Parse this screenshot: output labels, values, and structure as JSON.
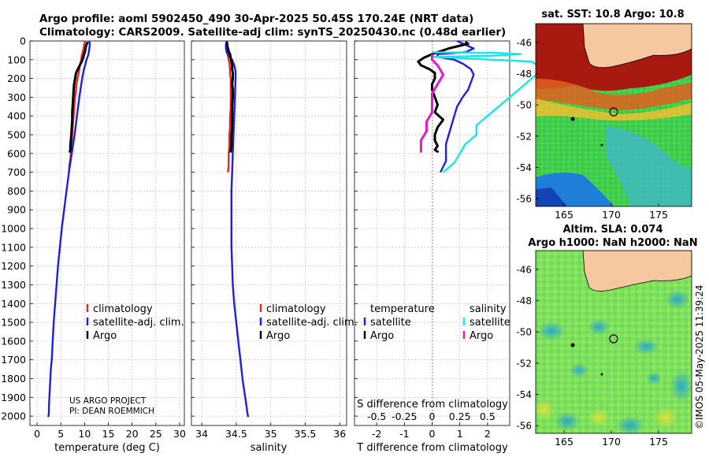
{
  "title": {
    "line1": "Argo profile: aoml 5902450_490 30-Apr-2025 50.45S 170.24E (NRT data)",
    "line2": "Climatology: CARS2009. Satellite-adj clim: synTS_20250430.nc (0.48d earlier)"
  },
  "credit": {
    "line1": "US ARGO PROJECT",
    "line2": "PI: DEAN ROEMMICH"
  },
  "watermark": "©IMOS 05-May-2025 11:39:24",
  "colors": {
    "climatology": "#e8281e",
    "satellite": "#1e1ee6",
    "argo": "#000000",
    "sat_diff_s": "#19e6e6",
    "argo_diff_s": "#e619d2"
  },
  "chart_data": [
    {
      "type": "line",
      "name": "temperature",
      "xlabel": "temperature (deg C)",
      "ylabel": "",
      "xlim": [
        -1.5,
        31
      ],
      "ylim": [
        2050,
        0
      ],
      "xticks": [
        "0",
        "5",
        "10",
        "15",
        "20",
        "25",
        "30"
      ],
      "yticks": [
        "0",
        "100",
        "200",
        "300",
        "400",
        "500",
        "600",
        "700",
        "800",
        "900",
        "1000",
        "1100",
        "1200",
        "1300",
        "1400",
        "1500",
        "1600",
        "1700",
        "1800",
        "1900",
        "2000"
      ],
      "legend": {
        "placement": "lower-right",
        "entries": [
          "climatology",
          "satellite-adj. clim.",
          "Argo"
        ]
      },
      "series": [
        {
          "name": "climatology",
          "color": "#e8281e",
          "x": [
            10.1,
            9.9,
            9.8,
            9.6,
            9.4,
            9.3,
            9.1,
            8.9,
            8.7,
            8.5,
            8.3,
            8.2,
            8.0,
            7.9,
            7.8,
            7.7,
            7.6,
            7.5,
            7.4,
            7.3,
            7.2,
            7.1,
            7.0,
            6.8,
            6.7
          ],
          "y": [
            0,
            20,
            40,
            60,
            80,
            100,
            120,
            150,
            180,
            200,
            230,
            260,
            300,
            330,
            360,
            400,
            430,
            460,
            500,
            530,
            560,
            600,
            630,
            660,
            700
          ]
        },
        {
          "name": "satellite-adj. clim.",
          "color": "#1e1ee6",
          "x": [
            11.0,
            11.1,
            11.0,
            10.9,
            10.7,
            10.4,
            10.1,
            9.8,
            9.5,
            9.2,
            8.9,
            8.4,
            7.9,
            7.3,
            6.7,
            6.2,
            5.7,
            5.2,
            4.8,
            4.4,
            4.1,
            3.8,
            3.5,
            3.3,
            3.1,
            2.9,
            2.8,
            2.7,
            2.6,
            2.5,
            2.5,
            2.4,
            2.4
          ],
          "y": [
            0,
            20,
            40,
            60,
            80,
            100,
            130,
            160,
            200,
            250,
            300,
            400,
            500,
            600,
            700,
            800,
            900,
            1000,
            1100,
            1200,
            1300,
            1400,
            1500,
            1600,
            1700,
            1750,
            1800,
            1850,
            1900,
            1950,
            1980,
            2000,
            2005
          ]
        },
        {
          "name": "Argo",
          "color": "#000000",
          "x": [
            10.6,
            10.5,
            10.3,
            10.2,
            10.1,
            9.9,
            9.7,
            9.4,
            9.0,
            8.6,
            8.2,
            8.0,
            7.8,
            7.7,
            7.6,
            7.5,
            7.4,
            7.4,
            7.3,
            7.2,
            7.1,
            7.0,
            7.0,
            6.9,
            6.9
          ],
          "y": [
            5,
            15,
            25,
            40,
            55,
            70,
            90,
            110,
            130,
            150,
            170,
            200,
            230,
            260,
            300,
            340,
            380,
            420,
            460,
            500,
            530,
            560,
            580,
            590,
            595
          ]
        }
      ]
    },
    {
      "type": "line",
      "name": "salinity",
      "xlabel": "salinity",
      "xlim": [
        33.85,
        36.1
      ],
      "ylim": [
        2050,
        0
      ],
      "xticks": [
        "34",
        "34.5",
        "35",
        "35.5",
        "36"
      ],
      "legend": {
        "placement": "lower-right",
        "entries": [
          "climatology",
          "satellite-adj. clim.",
          "Argo"
        ]
      },
      "series": [
        {
          "name": "climatology",
          "color": "#e8281e",
          "x": [
            34.36,
            34.36,
            34.37,
            34.37,
            34.38,
            34.39,
            34.4,
            34.41,
            34.41,
            34.42,
            34.42,
            34.42,
            34.42,
            34.42,
            34.42,
            34.41,
            34.41,
            34.41,
            34.4,
            34.4,
            34.4,
            34.39,
            34.39,
            34.39,
            34.38
          ],
          "y": [
            0,
            20,
            40,
            60,
            80,
            100,
            120,
            150,
            180,
            200,
            230,
            260,
            300,
            330,
            360,
            400,
            430,
            460,
            500,
            530,
            560,
            600,
            630,
            660,
            700
          ]
        },
        {
          "name": "satellite-adj. clim.",
          "color": "#1e1ee6",
          "x": [
            34.36,
            34.35,
            34.35,
            34.36,
            34.39,
            34.44,
            34.47,
            34.49,
            34.49,
            34.48,
            34.47,
            34.46,
            34.45,
            34.44,
            34.43,
            34.43,
            34.43,
            34.43,
            34.44,
            34.45,
            34.47,
            34.5,
            34.53,
            34.56,
            34.59,
            34.61,
            34.63,
            34.65,
            34.66,
            34.67,
            34.67
          ],
          "y": [
            0,
            20,
            40,
            60,
            80,
            100,
            130,
            160,
            200,
            300,
            400,
            500,
            600,
            700,
            800,
            900,
            1000,
            1100,
            1200,
            1300,
            1400,
            1500,
            1600,
            1700,
            1800,
            1850,
            1900,
            1950,
            1980,
            2000,
            2005
          ]
        },
        {
          "name": "Argo",
          "color": "#000000",
          "x": [
            34.36,
            34.37,
            34.37,
            34.38,
            34.39,
            34.41,
            34.42,
            34.43,
            34.44,
            34.44,
            34.45,
            34.45,
            34.44,
            34.45,
            34.45,
            34.44,
            34.44,
            34.44,
            34.44,
            34.43,
            34.43,
            34.43,
            34.42,
            34.42,
            34.42
          ],
          "y": [
            5,
            15,
            25,
            40,
            55,
            70,
            90,
            110,
            130,
            150,
            170,
            200,
            230,
            260,
            300,
            340,
            380,
            420,
            460,
            500,
            530,
            560,
            580,
            590,
            595
          ]
        }
      ]
    },
    {
      "type": "line",
      "name": "difference",
      "xlabel": "T difference from climatology",
      "xlabel2": "S difference from climatology",
      "xlim": [
        -2.8,
        2.8
      ],
      "ylim": [
        2050,
        0
      ],
      "xticks": [
        "-2",
        "-1",
        "0",
        "1",
        "2"
      ],
      "xticks2": [
        "-0.5",
        "-0.25",
        "0",
        "0.25",
        "0.5"
      ],
      "legend": {
        "placement": "lower",
        "temperature_header": "temperature",
        "salinity_header": "salinity",
        "entries": [
          "satellite",
          "Argo"
        ]
      },
      "series": [
        {
          "name": "T satellite",
          "color": "#1e1ee6",
          "x": [
            0.9,
            1.2,
            1.5,
            1.2,
            0.2,
            0.2,
            0.8,
            1.1,
            1.4,
            1.5,
            1.4,
            1.3,
            1.1,
            0.9,
            0.8,
            0.7,
            0.6,
            0.5,
            0.5,
            0.5,
            0.4,
            0.3
          ],
          "y": [
            0,
            20,
            40,
            60,
            70,
            85,
            100,
            120,
            150,
            180,
            220,
            260,
            300,
            350,
            400,
            450,
            500,
            550,
            600,
            640,
            670,
            700
          ]
        },
        {
          "name": "T Argo",
          "color": "#000000",
          "x": [
            1.2,
            1.3,
            1.0,
            0.6,
            0.3,
            0.0,
            -0.3,
            -0.5,
            -0.4,
            -0.1,
            0.1,
            0.1,
            0.0,
            0.0,
            0.1,
            0.2,
            0.1,
            0.4,
            0.2,
            0.1,
            0.1,
            0.2,
            0.1,
            0.2,
            0.2
          ],
          "y": [
            5,
            15,
            25,
            40,
            55,
            70,
            90,
            110,
            130,
            150,
            170,
            200,
            230,
            260,
            300,
            340,
            380,
            420,
            460,
            500,
            530,
            560,
            580,
            590,
            595
          ]
        },
        {
          "name": "S satellite",
          "color": "#19e6e6",
          "x": [
            0.0,
            0.3,
            0.6,
            0.8,
            0.5,
            0.0,
            0.2,
            0.9,
            1.0,
            0.9,
            0.8,
            0.7,
            0.6,
            0.5,
            0.4,
            0.4,
            0.3,
            0.2,
            0.1
          ],
          "y": [
            60,
            62,
            64,
            70,
            80,
            85,
            90,
            110,
            150,
            200,
            250,
            300,
            350,
            400,
            450,
            500,
            550,
            650,
            700
          ]
        },
        {
          "name": "S Argo",
          "color": "#e619d2",
          "x": [
            0.0,
            0.0,
            0.05,
            0.1,
            0.05,
            0.0,
            0.0,
            0.0,
            -0.05,
            -0.05,
            -0.1,
            -0.1,
            -0.1
          ],
          "y": [
            70,
            100,
            130,
            180,
            230,
            280,
            330,
            380,
            430,
            480,
            530,
            560,
            595
          ]
        }
      ]
    },
    {
      "type": "heatmap",
      "name": "sst-map",
      "title": "sat. SST: 10.8 Argo: 10.8",
      "xlim": [
        162,
        178.5
      ],
      "ylim": [
        -56.5,
        -44.8
      ],
      "xticks": [
        "165",
        "170",
        "175"
      ],
      "yticks": [
        "-46",
        "-48",
        "-50",
        "-52",
        "-54",
        "-56"
      ],
      "float_location": {
        "lon": 170.24,
        "lat": -50.45
      }
    },
    {
      "type": "heatmap",
      "name": "sla-map",
      "title": "Altim. SLA: 0.074",
      "subtitle": "Argo h1000: NaN h2000: NaN",
      "xlim": [
        162,
        178.5
      ],
      "ylim": [
        -56.5,
        -44.8
      ],
      "xticks": [
        "165",
        "170",
        "175"
      ],
      "yticks": [
        "-46",
        "-48",
        "-50",
        "-52",
        "-54",
        "-56"
      ],
      "float_location": {
        "lon": 170.24,
        "lat": -50.45
      }
    }
  ]
}
